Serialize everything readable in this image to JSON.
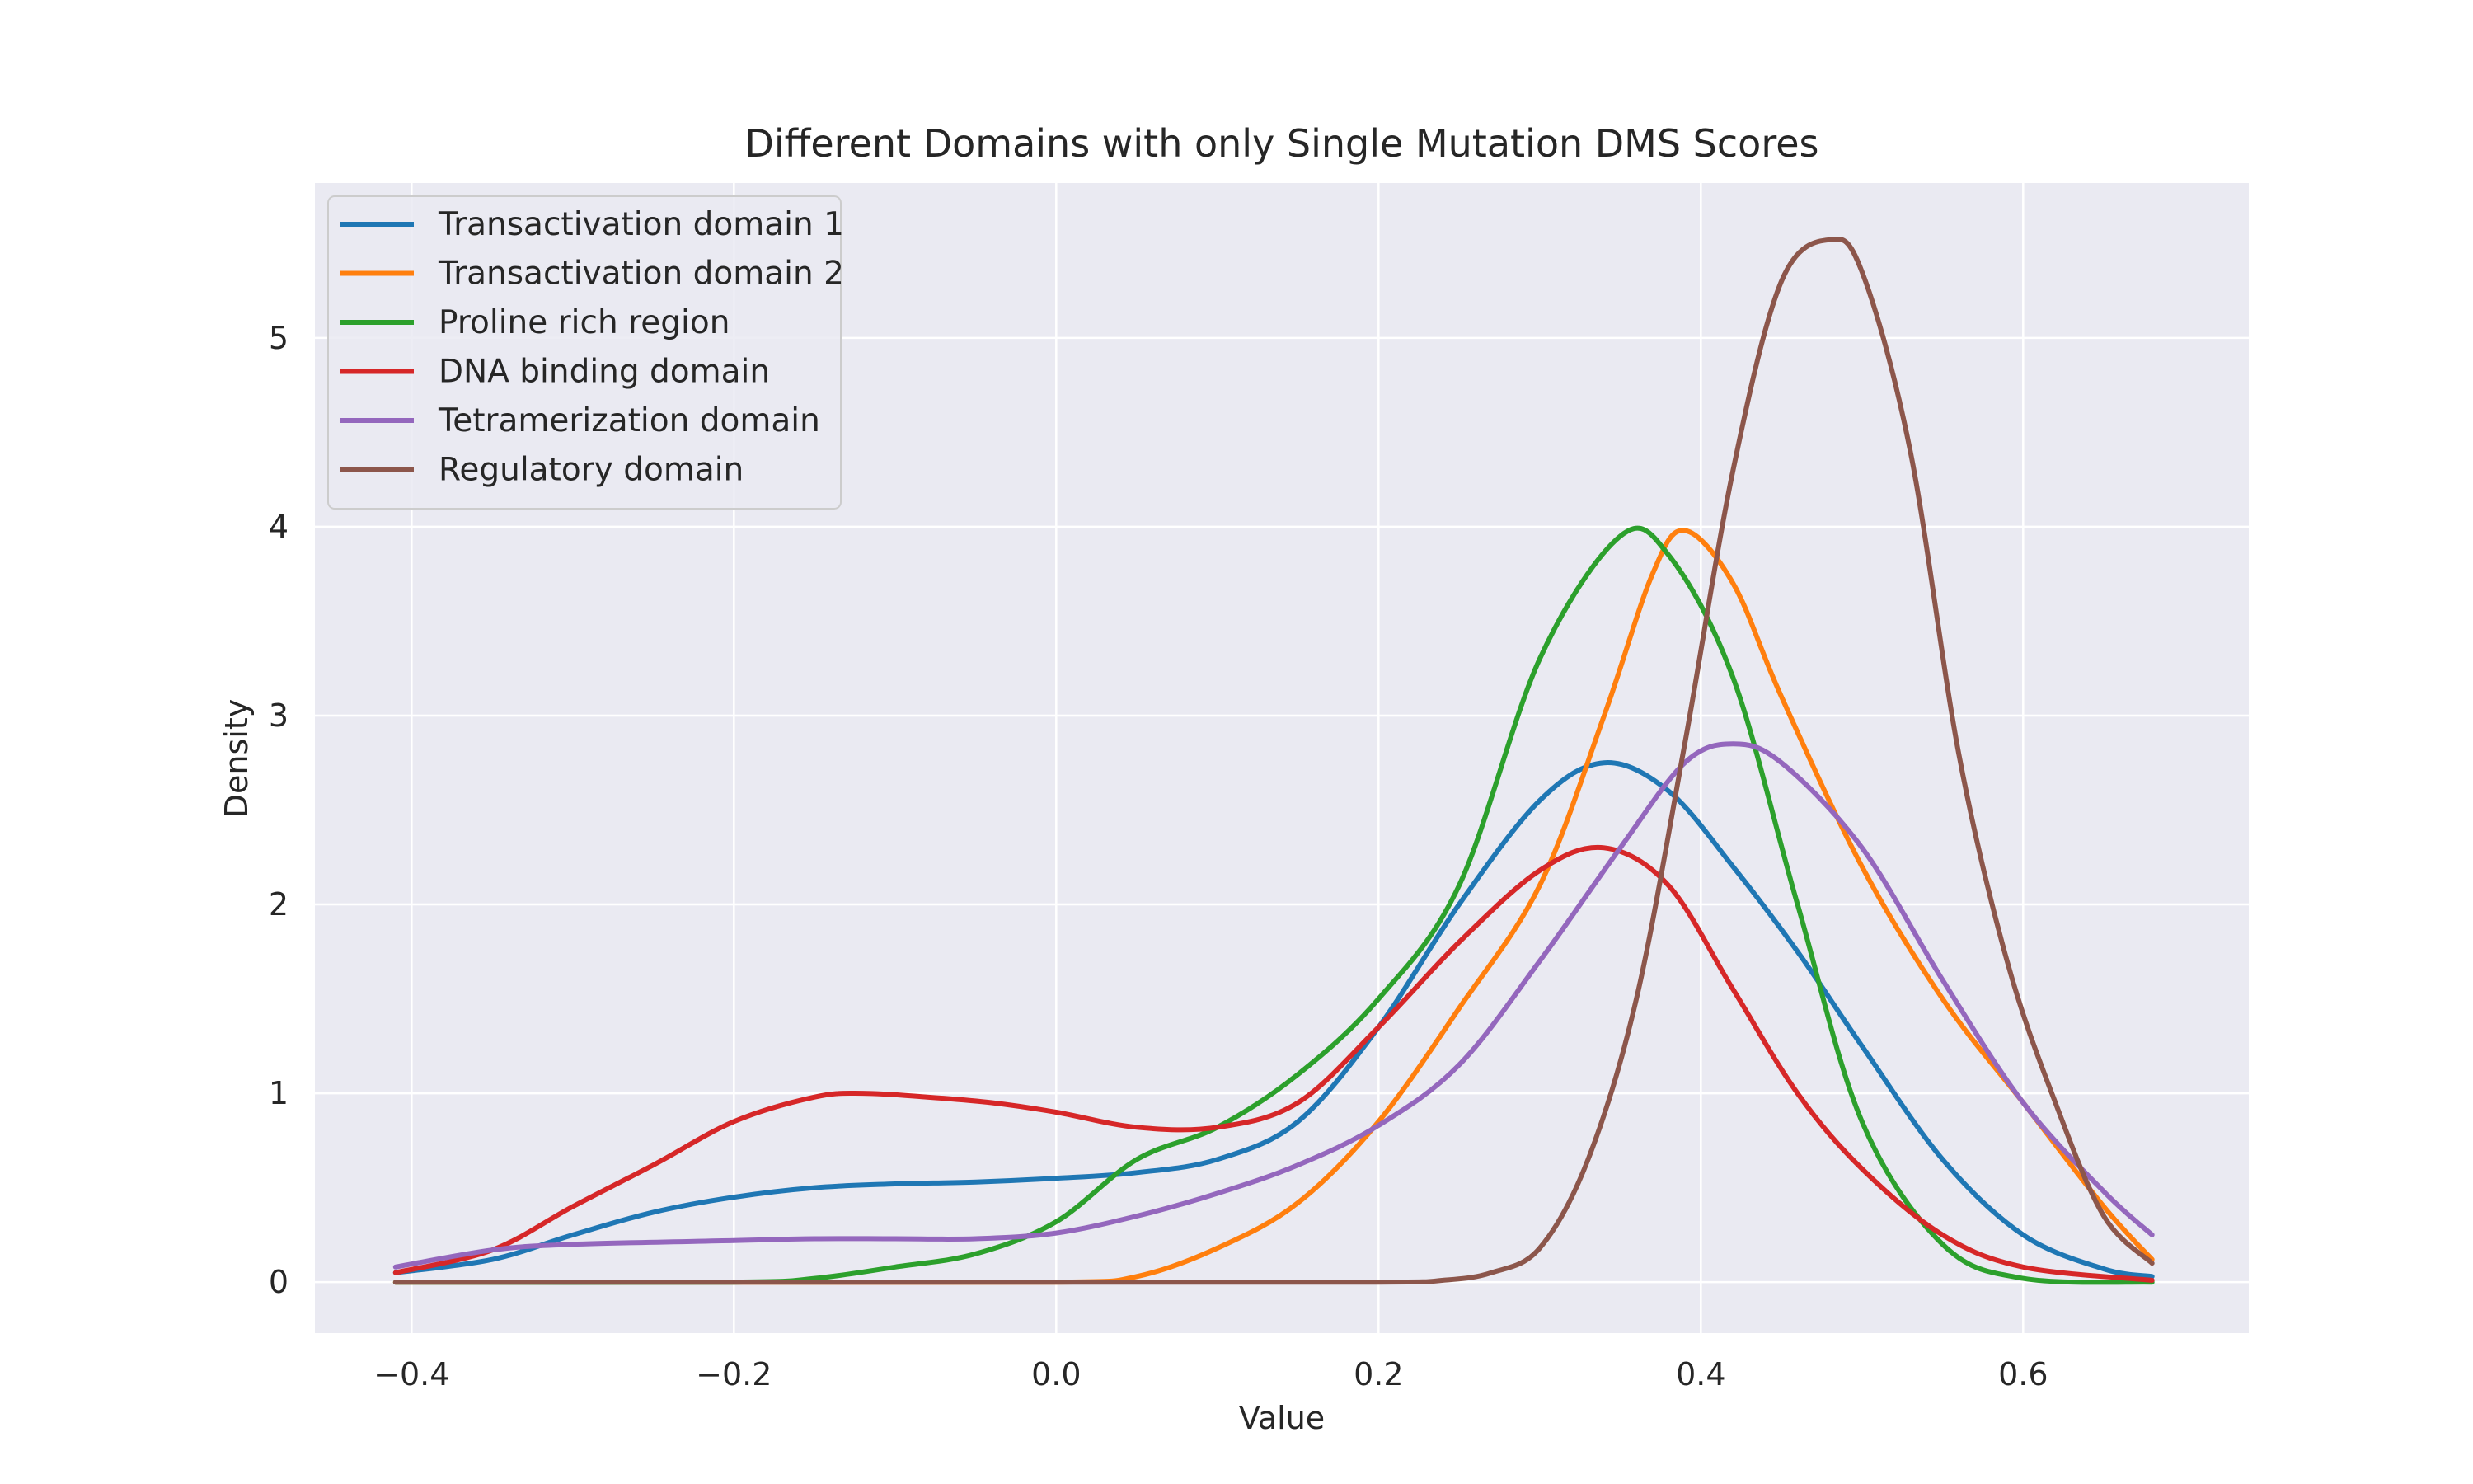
{
  "chart_data": {
    "type": "line",
    "title": "Different Domains with only Single Mutation DMS Scores",
    "xlabel": "Value",
    "ylabel": "Density",
    "xlim": [
      -0.46,
      0.74
    ],
    "ylim": [
      -0.27,
      5.82
    ],
    "xticks": [
      -0.4,
      -0.2,
      0.0,
      0.2,
      0.4,
      0.6
    ],
    "xtick_labels": [
      "−0.4",
      "−0.2",
      "0.0",
      "0.2",
      "0.4",
      "0.6"
    ],
    "yticks": [
      0,
      1,
      2,
      3,
      4,
      5
    ],
    "ytick_labels": [
      "0",
      "1",
      "2",
      "3",
      "4",
      "5"
    ],
    "grid": true,
    "legend_position": "top-left",
    "colors": {
      "background": "#eaeaf2",
      "grid": "#ffffff",
      "series": [
        "#1f77b4",
        "#ff7f0e",
        "#2ca02c",
        "#d62728",
        "#9467bd",
        "#8c564b"
      ]
    },
    "series": [
      {
        "name": "Transactivation domain 1",
        "color": "#1f77b4",
        "x": [
          -0.41,
          -0.35,
          -0.3,
          -0.25,
          -0.2,
          -0.15,
          -0.1,
          -0.05,
          0.0,
          0.05,
          0.1,
          0.15,
          0.2,
          0.25,
          0.3,
          0.34,
          0.38,
          0.42,
          0.46,
          0.5,
          0.55,
          0.6,
          0.65,
          0.68
        ],
        "y": [
          0.05,
          0.12,
          0.25,
          0.37,
          0.45,
          0.5,
          0.52,
          0.53,
          0.55,
          0.58,
          0.65,
          0.85,
          1.35,
          2.0,
          2.55,
          2.75,
          2.6,
          2.2,
          1.75,
          1.25,
          0.65,
          0.25,
          0.07,
          0.03
        ]
      },
      {
        "name": "Transactivation domain 2",
        "color": "#ff7f0e",
        "x": [
          -0.41,
          -0.2,
          0.0,
          0.05,
          0.1,
          0.15,
          0.2,
          0.25,
          0.3,
          0.34,
          0.37,
          0.39,
          0.42,
          0.45,
          0.5,
          0.55,
          0.6,
          0.65,
          0.68
        ],
        "y": [
          0.0,
          0.0,
          0.0,
          0.03,
          0.18,
          0.42,
          0.85,
          1.45,
          2.1,
          3.0,
          3.75,
          3.98,
          3.7,
          3.1,
          2.2,
          1.5,
          0.95,
          0.4,
          0.12
        ]
      },
      {
        "name": "Proline rich region",
        "color": "#2ca02c",
        "x": [
          -0.41,
          -0.2,
          -0.15,
          -0.1,
          -0.05,
          0.0,
          0.05,
          0.1,
          0.15,
          0.2,
          0.25,
          0.3,
          0.35,
          0.38,
          0.42,
          0.46,
          0.5,
          0.55,
          0.6,
          0.68
        ],
        "y": [
          0.0,
          0.0,
          0.02,
          0.08,
          0.15,
          0.32,
          0.65,
          0.82,
          1.1,
          1.5,
          2.1,
          3.3,
          3.95,
          3.85,
          3.2,
          2.0,
          0.85,
          0.2,
          0.02,
          0.0
        ]
      },
      {
        "name": "DNA binding domain",
        "color": "#d62728",
        "x": [
          -0.41,
          -0.35,
          -0.3,
          -0.25,
          -0.2,
          -0.15,
          -0.12,
          -0.08,
          -0.04,
          0.0,
          0.05,
          0.1,
          0.15,
          0.2,
          0.25,
          0.3,
          0.34,
          0.38,
          0.42,
          0.46,
          0.5,
          0.55,
          0.6,
          0.68
        ],
        "y": [
          0.05,
          0.17,
          0.4,
          0.62,
          0.85,
          0.98,
          1.0,
          0.98,
          0.95,
          0.9,
          0.82,
          0.82,
          0.95,
          1.35,
          1.8,
          2.18,
          2.3,
          2.1,
          1.55,
          1.0,
          0.6,
          0.25,
          0.08,
          0.01
        ]
      },
      {
        "name": "Tetramerization domain",
        "color": "#9467bd",
        "x": [
          -0.41,
          -0.35,
          -0.3,
          -0.2,
          -0.15,
          -0.1,
          -0.05,
          0.0,
          0.05,
          0.1,
          0.15,
          0.2,
          0.25,
          0.3,
          0.35,
          0.39,
          0.42,
          0.45,
          0.5,
          0.55,
          0.6,
          0.65,
          0.68
        ],
        "y": [
          0.08,
          0.17,
          0.2,
          0.22,
          0.23,
          0.23,
          0.23,
          0.26,
          0.35,
          0.47,
          0.62,
          0.83,
          1.15,
          1.7,
          2.3,
          2.75,
          2.85,
          2.75,
          2.3,
          1.6,
          0.95,
          0.48,
          0.25
        ]
      },
      {
        "name": "Regulatory domain",
        "color": "#8c564b",
        "x": [
          -0.41,
          0.0,
          0.2,
          0.24,
          0.27,
          0.3,
          0.33,
          0.36,
          0.39,
          0.42,
          0.45,
          0.48,
          0.5,
          0.53,
          0.56,
          0.59,
          0.62,
          0.65,
          0.68
        ],
        "y": [
          0.0,
          0.0,
          0.0,
          0.01,
          0.05,
          0.18,
          0.65,
          1.5,
          2.85,
          4.3,
          5.3,
          5.52,
          5.35,
          4.4,
          2.8,
          1.7,
          0.95,
          0.35,
          0.1
        ]
      }
    ]
  }
}
